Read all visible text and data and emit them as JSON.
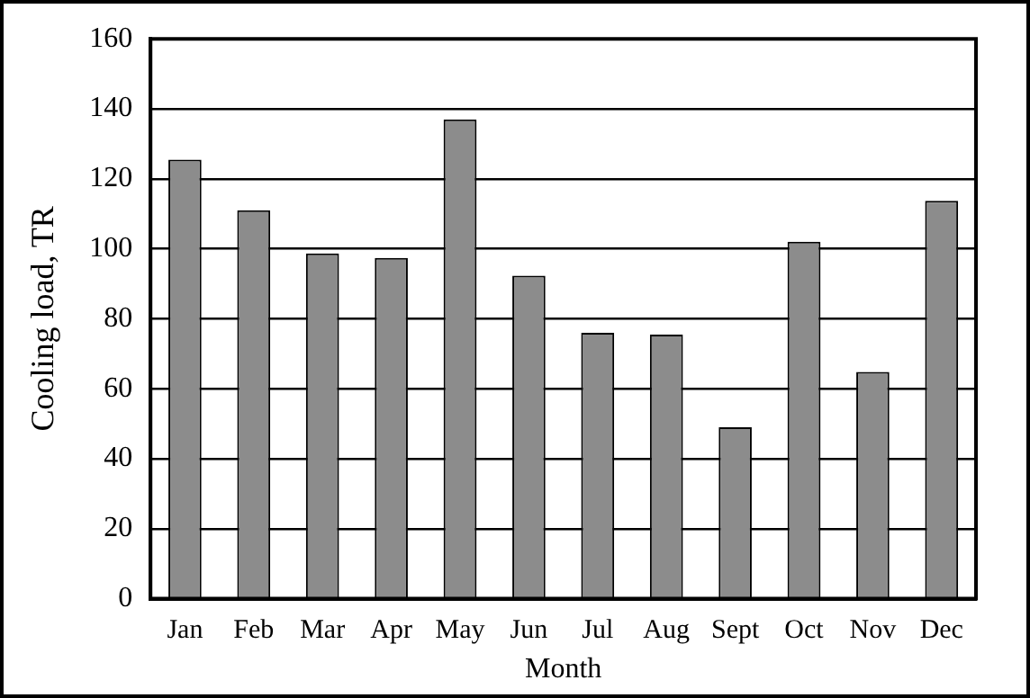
{
  "chart_data": {
    "type": "bar",
    "xlabel": "Month",
    "ylabel": "Cooling load, TR",
    "categories": [
      "Jan",
      "Feb",
      "Mar",
      "Apr",
      "May",
      "Jun",
      "Jul",
      "Aug",
      "Sept",
      "Oct",
      "Nov",
      "Dec"
    ],
    "values": [
      125.5,
      111,
      98.7,
      97.4,
      137,
      92.3,
      76,
      75.5,
      49,
      102,
      64.8,
      113.7
    ],
    "color": "#8c8c8c",
    "ylim": [
      0,
      160
    ],
    "yticks": [
      0,
      20,
      40,
      60,
      80,
      100,
      120,
      140,
      160
    ],
    "grid": "y",
    "legend": false
  }
}
